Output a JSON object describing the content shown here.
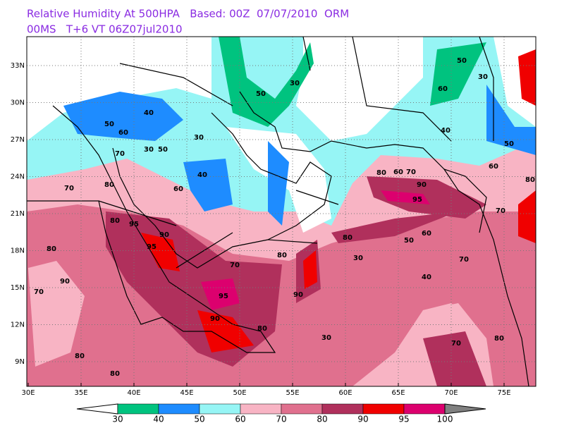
{
  "header": {
    "line1": "Relative Humidity At 500HPA   Based: 00Z  07/07/2010  ORM",
    "line2": "00MS   T+6 VT 06Z07jul2010"
  },
  "map": {
    "x_labels": [
      "30E",
      "35E",
      "40E",
      "45E",
      "50E",
      "55E",
      "60E",
      "65E",
      "70E",
      "75E"
    ],
    "y_labels": [
      "9N",
      "12N",
      "15N",
      "18N",
      "21N",
      "24N",
      "27N",
      "30N",
      "33N"
    ],
    "contour_labels": [
      "70",
      "80",
      "60",
      "40",
      "30",
      "50",
      "60",
      "70",
      "40",
      "30",
      "50",
      "50",
      "30",
      "80",
      "95",
      "90",
      "95",
      "70",
      "95",
      "90",
      "80",
      "30",
      "40",
      "50",
      "60",
      "70",
      "80",
      "70",
      "90",
      "95",
      "80",
      "60",
      "70",
      "50",
      "60",
      "70",
      "80",
      "50",
      "30",
      "60",
      "40",
      "80",
      "80",
      "70",
      "80",
      "90",
      "30",
      "80",
      "80",
      "90"
    ]
  },
  "colorbar": {
    "levels": [
      30,
      40,
      50,
      60,
      70,
      80,
      90,
      95,
      100
    ],
    "colors": [
      "#00c37f",
      "#1e8cff",
      "#96f5f5",
      "#f8b4c4",
      "#e0708e",
      "#b0305c",
      "#f00000",
      "#dc006e"
    ]
  }
}
